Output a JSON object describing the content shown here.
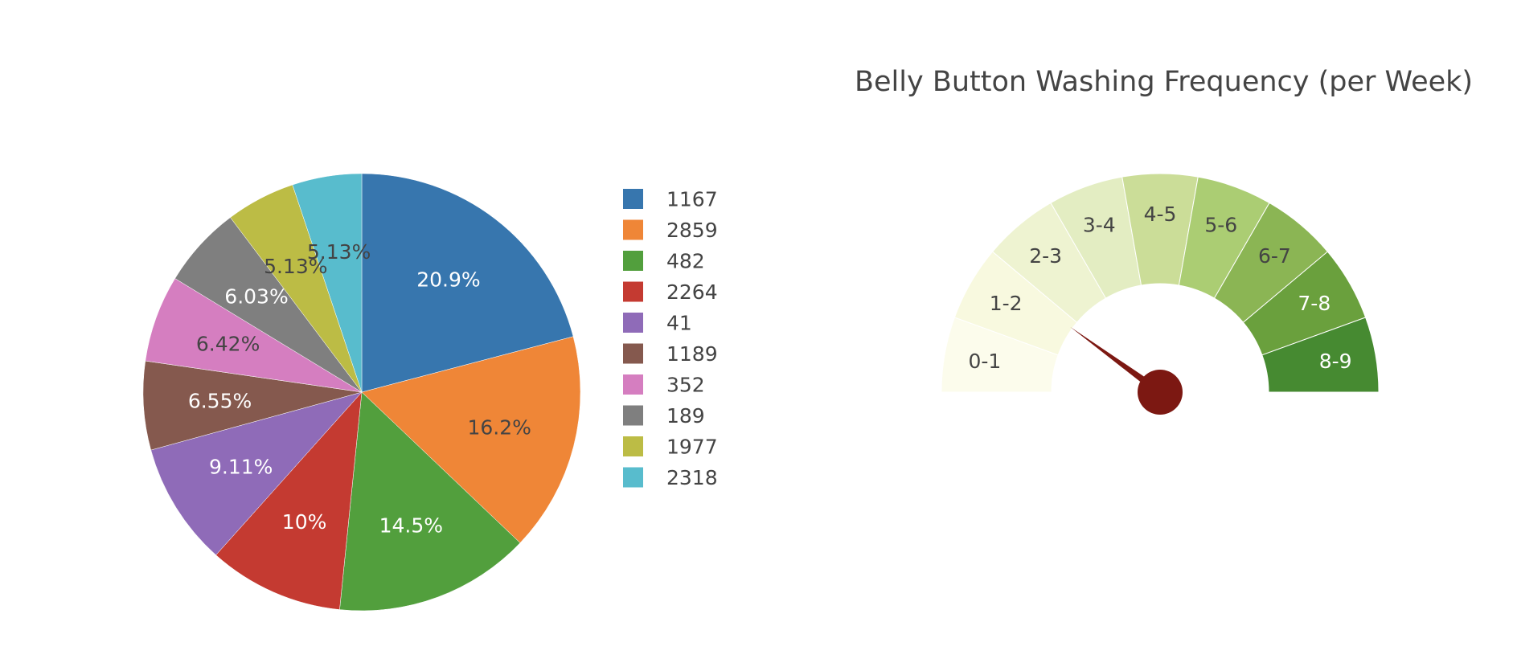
{
  "chart_data": [
    {
      "type": "pie",
      "labels": [
        "1167",
        "2859",
        "482",
        "2264",
        "41",
        "1189",
        "352",
        "189",
        "1977",
        "2318"
      ],
      "percents": [
        20.9,
        16.2,
        14.5,
        10,
        9.11,
        6.55,
        6.42,
        6.03,
        5.13,
        5.13
      ],
      "percent_labels": [
        "20.9%",
        "16.2%",
        "14.5%",
        "10%",
        "9.11%",
        "6.55%",
        "6.42%",
        "6.03%",
        "5.13%",
        "5.13%"
      ],
      "colors": [
        "#3776ae",
        "#ef8637",
        "#529f3d",
        "#c43a31",
        "#8f6bb8",
        "#85594e",
        "#d57ec0",
        "#7f7f7f",
        "#bcbc45",
        "#58bccd"
      ],
      "label_colors": [
        "#ffffff",
        "#444444",
        "#ffffff",
        "#ffffff",
        "#ffffff",
        "#ffffff",
        "#444444",
        "#ffffff",
        "#444444",
        "#444444"
      ],
      "start_angle_deg": 90,
      "direction": "clockwise",
      "legend_position": "right"
    },
    {
      "type": "gauge",
      "title": "Belly Button Washing Frequency (per Week)",
      "labels": [
        "0-1",
        "1-2",
        "2-3",
        "3-4",
        "4-5",
        "5-6",
        "6-7",
        "7-8",
        "8-9"
      ],
      "range": [
        0,
        9
      ],
      "colors": [
        "#fcfcec",
        "#f8f9df",
        "#eef3d1",
        "#e3edc2",
        "#cbdd98",
        "#abcd73",
        "#8bb554",
        "#6aa03d",
        "#468a31"
      ],
      "label_colors": [
        "#444444",
        "#444444",
        "#444444",
        "#444444",
        "#444444",
        "#444444",
        "#444444",
        "#ffffff",
        "#ffffff"
      ],
      "needle_value": 1.8,
      "needle_color": "#7c1812"
    }
  ]
}
